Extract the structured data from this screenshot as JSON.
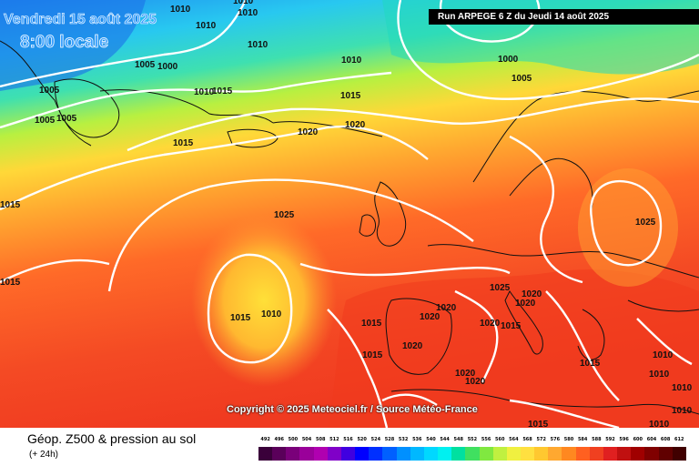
{
  "header": {
    "date": "Vendredi 15 août 2025",
    "time": "8:00 locale",
    "run": "Run ARPEGE 6 Z du Jeudi 14 août 2025"
  },
  "copyright": "Copyright © 2025 Meteociel.fr / Source Météo-France",
  "footer": {
    "title": "Géop. Z500 & pression au sol",
    "subtitle": "(+ 24h)"
  },
  "scale": {
    "labels": [
      "492",
      "496",
      "500",
      "504",
      "508",
      "512",
      "516",
      "520",
      "524",
      "528",
      "532",
      "536",
      "540",
      "544",
      "548",
      "552",
      "556",
      "560",
      "564",
      "568",
      "572",
      "576",
      "580",
      "584",
      "588",
      "592",
      "596",
      "600",
      "604",
      "608",
      "612"
    ],
    "colors": [
      "#3a003a",
      "#5a005a",
      "#7a007a",
      "#9a009a",
      "#b000b0",
      "#8000c8",
      "#4000e0",
      "#0000ff",
      "#0030ff",
      "#0060ff",
      "#0090ff",
      "#00b8ff",
      "#00d8ff",
      "#00f0f0",
      "#00e0a0",
      "#40e060",
      "#80e840",
      "#c0f040",
      "#f0f040",
      "#ffe040",
      "#ffc830",
      "#ffa830",
      "#ff8820",
      "#ff6020",
      "#f04020",
      "#e02020",
      "#c01010",
      "#a00000",
      "#800000",
      "#600000",
      "#400000"
    ]
  },
  "isobars": [
    "1010",
    "1010",
    "1010",
    "1010",
    "1010",
    "1010",
    "1000",
    "1000",
    "1005",
    "1005",
    "1005",
    "1005",
    "1005",
    "1010",
    "1015",
    "1015",
    "1020",
    "1020",
    "1015",
    "1025",
    "1025",
    "1015",
    "1010",
    "1015",
    "1015",
    "1015",
    "1020",
    "1020",
    "1020",
    "1025",
    "1020",
    "1020",
    "1015",
    "1020",
    "1015",
    "1015",
    "1010",
    "1010",
    "1010",
    "1020",
    "1020",
    "1015",
    "1010",
    "1010"
  ]
}
